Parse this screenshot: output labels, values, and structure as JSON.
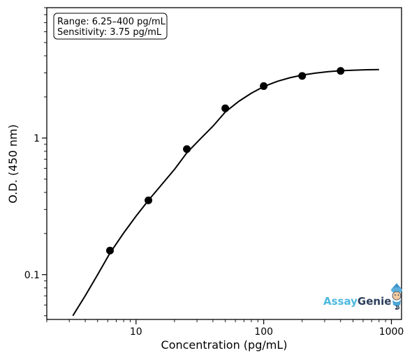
{
  "chart_data": {
    "type": "scatter",
    "xscale": "log",
    "yscale": "log",
    "xlabel": "Concentration (pg/mL)",
    "ylabel": "O.D. (450 nm)",
    "xlim": [
      2,
      1200
    ],
    "ylim": [
      0.047,
      9
    ],
    "x_ticks": [
      10,
      100,
      1000
    ],
    "x_tick_labels": [
      "10",
      "100",
      "1000"
    ],
    "y_ticks": [
      0.1,
      1
    ],
    "y_tick_labels": [
      "0.1",
      "1"
    ],
    "grid": false,
    "series": [
      {
        "kind": "points",
        "x": [
          6.25,
          12.5,
          25,
          50,
          100,
          200,
          400
        ],
        "y": [
          0.15,
          0.35,
          0.83,
          1.65,
          2.4,
          2.85,
          3.1
        ]
      },
      {
        "kind": "fit-curve",
        "x": [
          3.2,
          4,
          5,
          6.25,
          8,
          10,
          12.5,
          16,
          20,
          25,
          32,
          40,
          50,
          64,
          80,
          100,
          128,
          160,
          200,
          256,
          320,
          400,
          512,
          640,
          800
        ],
        "y": [
          0.05,
          0.07,
          0.1,
          0.144,
          0.202,
          0.268,
          0.35,
          0.46,
          0.59,
          0.78,
          0.99,
          1.22,
          1.55,
          1.86,
          2.13,
          2.38,
          2.6,
          2.76,
          2.89,
          2.99,
          3.06,
          3.11,
          3.14,
          3.16,
          3.17
        ]
      }
    ],
    "annotation": {
      "range_text": "Range: 6.25–400 pg/mL",
      "sensitivity_text": "Sensitivity: 3.75 pg/mL",
      "position": "top-left"
    },
    "logo": {
      "part1": "Assay",
      "part2": "Genie",
      "part1_color": "#4cb8e0",
      "part2_color": "#2d3e5c",
      "position": "bottom-right"
    },
    "colors": {
      "marker": "#000000",
      "line": "#000000"
    }
  }
}
